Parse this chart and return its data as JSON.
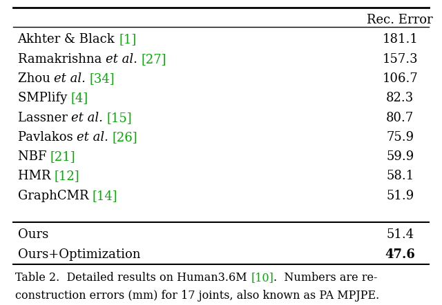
{
  "header": "Rec. Error",
  "rows": [
    {
      "base_text": "Akhter & Black ",
      "italic_part": "",
      "after_italic": "",
      "cite_text": "[1]",
      "value": "181.1",
      "bold_value": false
    },
    {
      "base_text": "Ramakrishna ",
      "italic_part": "et al.",
      "after_italic": " ",
      "cite_text": "[27]",
      "value": "157.3",
      "bold_value": false
    },
    {
      "base_text": "Zhou ",
      "italic_part": "et al.",
      "after_italic": " ",
      "cite_text": "[34]",
      "value": "106.7",
      "bold_value": false
    },
    {
      "base_text": "SMPlify ",
      "italic_part": "",
      "after_italic": "",
      "cite_text": "[4]",
      "value": "82.3",
      "bold_value": false
    },
    {
      "base_text": "Lassner ",
      "italic_part": "et al.",
      "after_italic": " ",
      "cite_text": "[15]",
      "value": "80.7",
      "bold_value": false
    },
    {
      "base_text": "Pavlakos ",
      "italic_part": "et al.",
      "after_italic": " ",
      "cite_text": "[26]",
      "value": "75.9",
      "bold_value": false
    },
    {
      "base_text": "NBF ",
      "italic_part": "",
      "after_italic": "",
      "cite_text": "[21]",
      "value": "59.9",
      "bold_value": false
    },
    {
      "base_text": "HMR ",
      "italic_part": "",
      "after_italic": "",
      "cite_text": "[12]",
      "value": "58.1",
      "bold_value": false
    },
    {
      "base_text": "GraphCMR ",
      "italic_part": "",
      "after_italic": "",
      "cite_text": "[14]",
      "value": "51.9",
      "bold_value": false
    }
  ],
  "ours_rows": [
    {
      "text": "Ours",
      "value": "51.4",
      "bold_value": false
    },
    {
      "text": "Ours+Optimization",
      "value": "47.6",
      "bold_value": true
    }
  ],
  "cap_before_cite": "Table 2.  Detailed results on Human3.6M ",
  "cap_cite": "[10]",
  "cap_after_cite": ".  Numbers are re-",
  "cap_line2": "construction errors (mm) for 17 joints, also known as PA MPJPE.",
  "bg_color": "#ffffff",
  "text_color": "#000000",
  "green_color": "#00aa00",
  "font_size": 13,
  "caption_font_size": 11.5,
  "line_lw_thick": 2.0,
  "line_lw_thin": 1.0
}
